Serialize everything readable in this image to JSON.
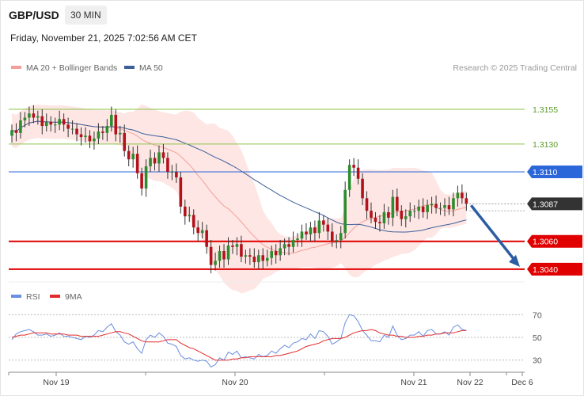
{
  "header": {
    "symbol": "GBP/USD",
    "timeframe": "30 MIN",
    "datetime": "Friday, November 21, 2025 7:02:56 AM CET",
    "credit": "Research © 2025 Trading Central"
  },
  "legend": {
    "ma20": {
      "label": "MA 20 + Bollinger Bands",
      "color": "#f4a09a"
    },
    "ma50": {
      "label": "MA 50",
      "color": "#3d5f9a"
    }
  },
  "rsi_legend": {
    "rsi": {
      "label": "RSI",
      "color": "#6a8ee0"
    },
    "ma9": {
      "label": "9MA",
      "color": "#e32b2b"
    }
  },
  "chart_data": [
    {
      "type": "candlestick",
      "ylim": [
        1.30285,
        1.31795
      ],
      "x_ticks": [
        "Nov 19",
        "Nov 20",
        "Nov 21",
        "Nov 22",
        "Dec 6"
      ],
      "levels": [
        {
          "value": 1.3155,
          "label": "1.3155",
          "role": "resistance",
          "color": "#8bc34a"
        },
        {
          "value": 1.313,
          "label": "1.3130",
          "role": "resistance",
          "color": "#8bc34a"
        },
        {
          "value": 1.311,
          "label": "1.3110",
          "role": "pivot",
          "color": "#2b67d8"
        },
        {
          "value": 1.3087,
          "label": "1.3087",
          "role": "last-price",
          "color": "#333333"
        },
        {
          "value": 1.306,
          "label": "1.3060",
          "role": "support",
          "color": "#e00000"
        },
        {
          "value": 1.304,
          "label": "1.3040",
          "role": "support",
          "color": "#e00000"
        }
      ],
      "projection": {
        "from": 1.3087,
        "to": 1.304,
        "direction": "down",
        "color": "#2c5da3"
      },
      "candles_close": [
        1.314,
        1.3138,
        1.3147,
        1.3149,
        1.3152,
        1.3149,
        1.315,
        1.3143,
        1.3146,
        1.3144,
        1.3144,
        1.3148,
        1.3144,
        1.3141,
        1.3141,
        1.3137,
        1.3135,
        1.3136,
        1.3132,
        1.3134,
        1.3139,
        1.3138,
        1.3143,
        1.3151,
        1.3137,
        1.3138,
        1.3125,
        1.3119,
        1.3123,
        1.3109,
        1.3098,
        1.3114,
        1.312,
        1.3116,
        1.3124,
        1.312,
        1.311,
        1.311,
        1.3106,
        1.3085,
        1.3078,
        1.3079,
        1.307,
        1.3066,
        1.3068,
        1.3056,
        1.3043,
        1.3046,
        1.3053,
        1.3047,
        1.3057,
        1.3056,
        1.3058,
        1.3049,
        1.305,
        1.3049,
        1.3045,
        1.305,
        1.3046,
        1.3048,
        1.3053,
        1.305,
        1.3055,
        1.3058,
        1.3056,
        1.3061,
        1.3062,
        1.3067,
        1.3065,
        1.307,
        1.3066,
        1.3075,
        1.3072,
        1.3067,
        1.306,
        1.3061,
        1.3066,
        1.3097,
        1.3115,
        1.3113,
        1.3105,
        1.3091,
        1.3082,
        1.3077,
        1.3074,
        1.3073,
        1.3081,
        1.3077,
        1.3092,
        1.3082,
        1.3076,
        1.3078,
        1.3082,
        1.3082,
        1.3085,
        1.3081,
        1.3086,
        1.3087,
        1.3084,
        1.3084,
        1.3086,
        1.3083,
        1.3091,
        1.3095,
        1.3091,
        1.3087
      ],
      "ma20_last": 1.3082,
      "ma50_last": 1.3077
    },
    {
      "type": "line",
      "title": "RSI",
      "ylim": [
        20,
        80
      ],
      "y_ticks": [
        30,
        50,
        70
      ],
      "series": [
        {
          "name": "RSI",
          "values": [
            48,
            53,
            55,
            56,
            57,
            55,
            52,
            52,
            53,
            51,
            52,
            54,
            51,
            51,
            50,
            49,
            48,
            51,
            50,
            52,
            56,
            55,
            59,
            62,
            55,
            52,
            46,
            44,
            46,
            40,
            36,
            48,
            52,
            50,
            54,
            51,
            45,
            44,
            42,
            34,
            31,
            32,
            30,
            29,
            30,
            29,
            24,
            26,
            32,
            30,
            37,
            35,
            38,
            32,
            33,
            32,
            31,
            35,
            33,
            34,
            38,
            36,
            40,
            43,
            41,
            45,
            46,
            49,
            48,
            53,
            49,
            56,
            55,
            51,
            44,
            46,
            49,
            63,
            70,
            69,
            64,
            56,
            52,
            47,
            47,
            46,
            52,
            50,
            60,
            52,
            48,
            49,
            52,
            52,
            55,
            51,
            56,
            57,
            53,
            53,
            55,
            52,
            59,
            61,
            57,
            56
          ]
        },
        {
          "name": "9MA",
          "values": [
            50,
            51,
            52,
            52,
            53,
            54,
            54,
            54,
            54,
            53,
            53,
            53,
            53,
            52,
            52,
            52,
            51,
            51,
            51,
            51,
            51,
            52,
            53,
            54,
            55,
            55,
            54,
            53,
            51,
            49,
            47,
            46,
            46,
            46,
            46,
            47,
            48,
            48,
            48,
            45,
            43,
            41,
            40,
            38,
            36,
            34,
            32,
            30,
            30,
            30,
            30,
            31,
            31,
            32,
            32,
            33,
            33,
            33,
            33,
            33,
            33,
            34,
            34,
            35,
            36,
            37,
            38,
            40,
            42,
            43,
            44,
            45,
            47,
            48,
            49,
            49,
            49,
            50,
            52,
            54,
            55,
            56,
            56,
            57,
            56,
            54,
            53,
            52,
            52,
            51,
            51,
            50,
            50,
            50,
            51,
            51,
            52,
            52,
            53,
            53,
            54,
            54,
            54,
            55,
            56,
            56
          ]
        }
      ]
    }
  ]
}
